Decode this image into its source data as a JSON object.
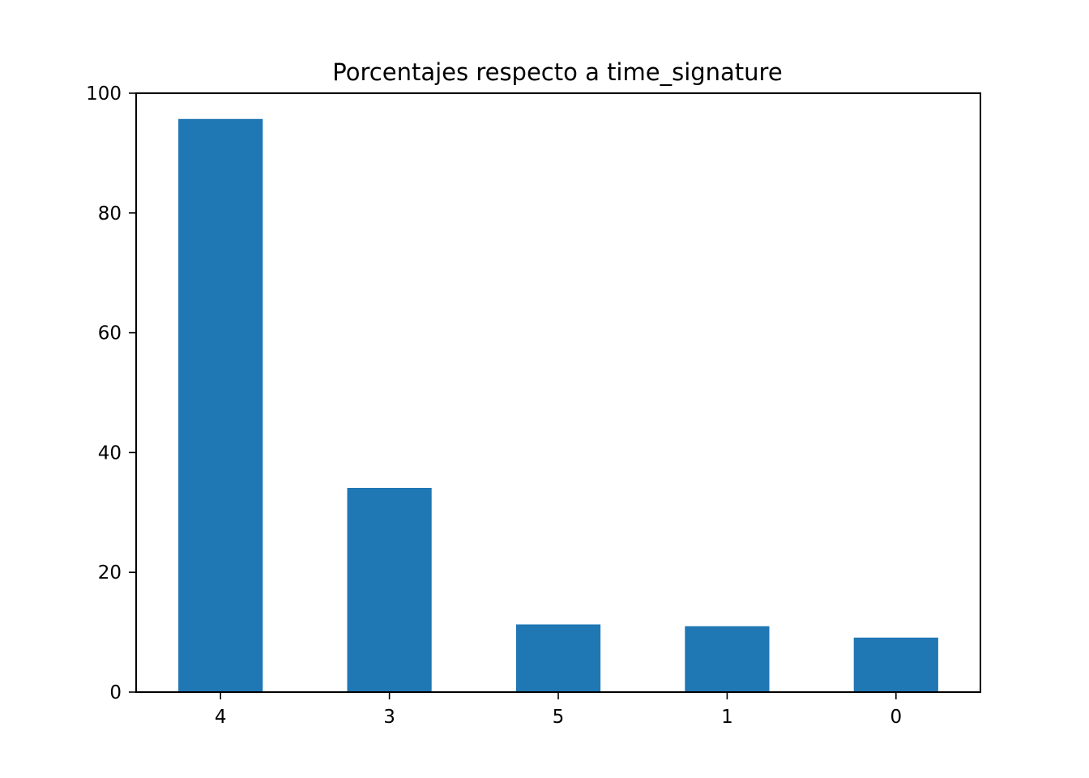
{
  "chart_data": {
    "type": "bar",
    "title": "Porcentajes respecto a time_signature",
    "xlabel": "",
    "ylabel": "",
    "categories": [
      "4",
      "3",
      "5",
      "1",
      "0"
    ],
    "values": [
      95.7,
      34.1,
      11.3,
      11.0,
      9.1
    ],
    "ylim": [
      0,
      100
    ],
    "yticks": [
      0,
      20,
      40,
      60,
      80,
      100
    ],
    "bar_color": "#1f77b4",
    "grid": false,
    "legend": "none"
  }
}
